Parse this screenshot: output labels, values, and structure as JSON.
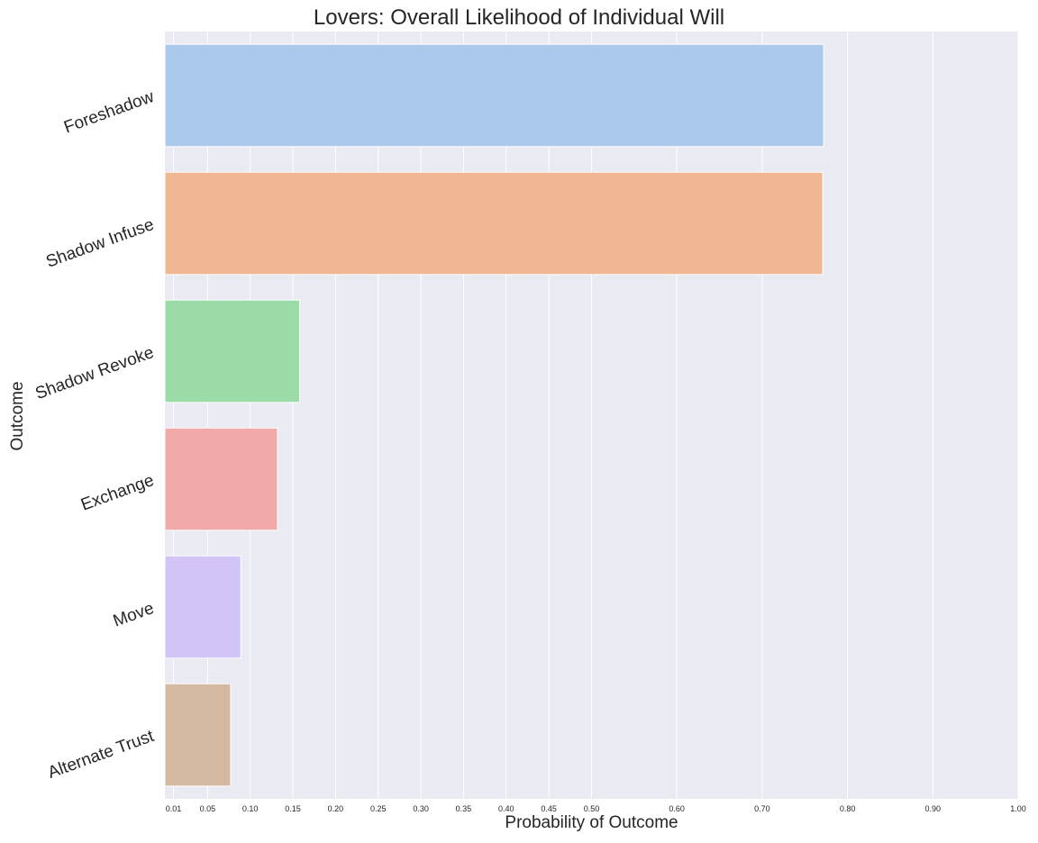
{
  "chart_data": {
    "type": "bar",
    "orientation": "horizontal",
    "title": "Lovers: Overall Likelihood of Individual Will",
    "xlabel": "Probability of Outcome",
    "ylabel": "Outcome",
    "xlim": [
      0,
      1.0
    ],
    "grid": true,
    "x_ticks": [
      0.01,
      0.05,
      0.1,
      0.15,
      0.2,
      0.25,
      0.3,
      0.35,
      0.4,
      0.45,
      0.5,
      0.6,
      0.7,
      0.8,
      0.9,
      1.0
    ],
    "x_tick_labels": [
      "0.01",
      "0.05",
      "0.10",
      "0.15",
      "0.20",
      "0.25",
      "0.30",
      "0.35",
      "0.40",
      "0.45",
      "0.50",
      "0.60",
      "0.70",
      "0.80",
      "0.90",
      "1.00"
    ],
    "categories": [
      "Foreshadow",
      "Shadow Infuse",
      "Shadow Revoke",
      "Exchange",
      "Move",
      "Alternate Trust"
    ],
    "values": [
      0.772,
      0.771,
      0.158,
      0.132,
      0.089,
      0.077
    ],
    "colors": [
      "#abc9ec",
      "#f0b793",
      "#9adba8",
      "#f1aaa7",
      "#d3c4f8",
      "#d4b9a1"
    ]
  }
}
